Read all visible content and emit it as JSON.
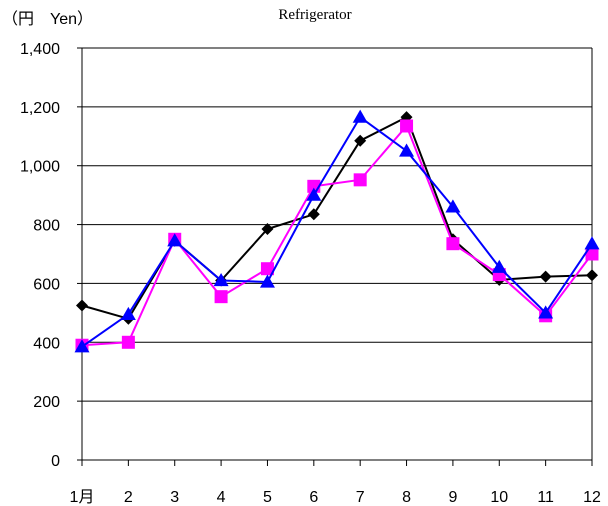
{
  "chart_data": {
    "type": "line",
    "title": "Refrigerator",
    "ylabel": "（円　Yen）",
    "x": [
      "1月",
      "2",
      "3",
      "4",
      "5",
      "6",
      "7",
      "8",
      "9",
      "10",
      "11",
      "12"
    ],
    "ylim": [
      0,
      1400
    ],
    "y_ticks": [
      0,
      200,
      400,
      600,
      800,
      1000,
      1200,
      1400
    ],
    "y_tick_labels": [
      "0",
      "200",
      "400",
      "600",
      "800",
      "1,000",
      "1,200",
      "1,400"
    ],
    "grid": true,
    "legend": "none",
    "series": [
      {
        "color": "#000000",
        "marker": "diamond",
        "values": [
          525,
          480,
          745,
          610,
          785,
          835,
          1085,
          1165,
          750,
          612,
          623,
          628
        ]
      },
      {
        "color": "#ff00ff",
        "marker": "square",
        "values": [
          390,
          400,
          750,
          555,
          650,
          930,
          952,
          1135,
          735,
          630,
          490,
          700
        ]
      },
      {
        "color": "#0000ff",
        "marker": "triangle",
        "values": [
          385,
          495,
          745,
          610,
          605,
          900,
          1165,
          1050,
          860,
          655,
          500,
          735
        ]
      }
    ]
  }
}
